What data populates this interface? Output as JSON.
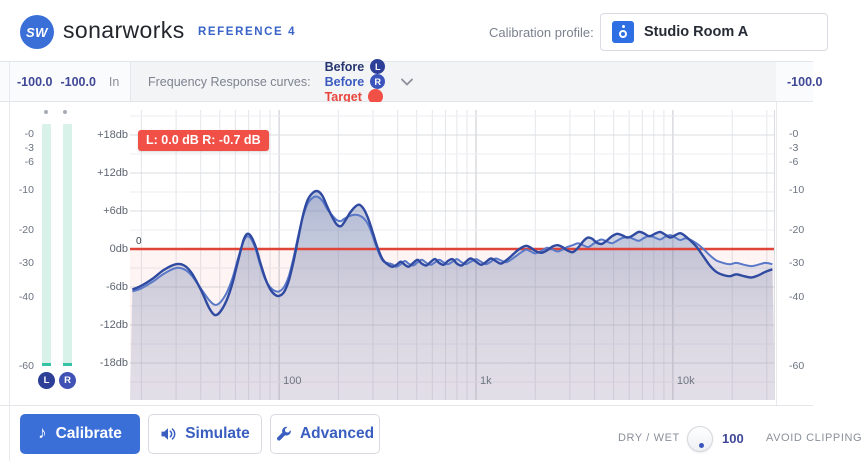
{
  "header": {
    "logo_text": "SW",
    "brand": "sonarworks",
    "product": "REFERENCE 4",
    "profile_label": "Calibration profile:",
    "profile_value": "Studio Room A"
  },
  "meters": {
    "left": {
      "peak_l": "-100.0",
      "peak_r": "-100.0",
      "mode": "In",
      "channels": [
        "L",
        "R"
      ],
      "ticks": [
        "-0",
        "-3",
        "-6",
        "-10",
        "-20",
        "-30",
        "-40",
        "-60"
      ]
    },
    "right": {
      "peak": "-100.0",
      "ticks": [
        "-0",
        "-3",
        "-6",
        "-10",
        "-20",
        "-30",
        "-40",
        "-60"
      ]
    }
  },
  "legend": {
    "title": "Frequency Response curves:",
    "items": [
      {
        "label": "Before",
        "badge": "L",
        "label_color": "#26356f",
        "badge_color": "#2e3f98"
      },
      {
        "label": "Before",
        "badge": "R",
        "label_color": "#3b5bc0",
        "badge_color": "#3c55bd"
      },
      {
        "label": "Target",
        "badge": "",
        "label_color": "#e8453c",
        "badge_color": "#f05045"
      }
    ]
  },
  "chart_data": {
    "type": "line",
    "x_scale": "log",
    "x_range_hz": [
      17.5,
      33000
    ],
    "y_range_db": [
      -24,
      22
    ],
    "grid": true,
    "tooltip": "L: 0.0 dB R: -0.7 dB",
    "target_db": 0,
    "target_label": "0",
    "x_ticks": [
      {
        "label": "100",
        "hz": 100
      },
      {
        "label": "1k",
        "hz": 1000
      },
      {
        "label": "10k",
        "hz": 10000
      }
    ],
    "y_ticks": [
      {
        "label": "+18db",
        "db": 18
      },
      {
        "label": "+12db",
        "db": 12
      },
      {
        "label": "+6db",
        "db": 6
      },
      {
        "label": "0db",
        "db": 0
      },
      {
        "label": "-6db",
        "db": -6
      },
      {
        "label": "-12db",
        "db": -12
      },
      {
        "label": "-18db",
        "db": -18
      }
    ],
    "series": [
      {
        "name": "Before L",
        "color": "#2f4aa0",
        "points": [
          [
            18,
            -6.4
          ],
          [
            20,
            -5.8
          ],
          [
            23,
            -4.6
          ],
          [
            26,
            -3.3
          ],
          [
            30,
            -2.4
          ],
          [
            33,
            -2.6
          ],
          [
            36,
            -3.8
          ],
          [
            40,
            -6.4
          ],
          [
            44,
            -9.2
          ],
          [
            47,
            -10.4
          ],
          [
            50,
            -10.0
          ],
          [
            54,
            -8.2
          ],
          [
            58,
            -5.4
          ],
          [
            62,
            -1.8
          ],
          [
            66,
            1.4
          ],
          [
            69,
            2.4
          ],
          [
            72,
            2.0
          ],
          [
            76,
            0.4
          ],
          [
            80,
            -2.0
          ],
          [
            85,
            -4.6
          ],
          [
            90,
            -6.3
          ],
          [
            95,
            -7.2
          ],
          [
            100,
            -7.4
          ],
          [
            106,
            -6.8
          ],
          [
            112,
            -5.0
          ],
          [
            118,
            -2.2
          ],
          [
            125,
            1.6
          ],
          [
            132,
            5.2
          ],
          [
            140,
            7.8
          ],
          [
            150,
            9.0
          ],
          [
            158,
            9.1
          ],
          [
            166,
            8.4
          ],
          [
            175,
            6.8
          ],
          [
            185,
            5.2
          ],
          [
            196,
            3.9
          ],
          [
            206,
            3.6
          ],
          [
            215,
            4.3
          ],
          [
            228,
            5.6
          ],
          [
            242,
            6.6
          ],
          [
            255,
            7.0
          ],
          [
            268,
            6.4
          ],
          [
            282,
            5.0
          ],
          [
            298,
            2.8
          ],
          [
            315,
            0.4
          ],
          [
            335,
            -1.6
          ],
          [
            355,
            -2.4
          ],
          [
            375,
            -2.8
          ],
          [
            395,
            -2.5
          ],
          [
            415,
            -2.0
          ],
          [
            435,
            -2.5
          ],
          [
            455,
            -2.8
          ],
          [
            480,
            -2.2
          ],
          [
            505,
            -1.7
          ],
          [
            530,
            -2.3
          ],
          [
            560,
            -2.6
          ],
          [
            590,
            -2.0
          ],
          [
            620,
            -1.6
          ],
          [
            650,
            -2.2
          ],
          [
            685,
            -2.5
          ],
          [
            720,
            -1.9
          ],
          [
            760,
            -1.6
          ],
          [
            800,
            -2.3
          ],
          [
            845,
            -2.6
          ],
          [
            890,
            -2.0
          ],
          [
            940,
            -1.5
          ],
          [
            1000,
            -2.0
          ],
          [
            1060,
            -2.5
          ],
          [
            1120,
            -2.1
          ],
          [
            1190,
            -1.5
          ],
          [
            1260,
            -1.9
          ],
          [
            1340,
            -2.3
          ],
          [
            1420,
            -1.8
          ],
          [
            1500,
            -1.2
          ],
          [
            1600,
            -0.4
          ],
          [
            1700,
            0.2
          ],
          [
            1800,
            0.5
          ],
          [
            1900,
            0.2
          ],
          [
            2000,
            -0.3
          ],
          [
            2150,
            -0.6
          ],
          [
            2300,
            -0.2
          ],
          [
            2450,
            0.4
          ],
          [
            2600,
            0.6
          ],
          [
            2750,
            0.3
          ],
          [
            2900,
            -0.2
          ],
          [
            3100,
            -0.5
          ],
          [
            3300,
            0.2
          ],
          [
            3500,
            1.2
          ],
          [
            3700,
            1.8
          ],
          [
            3900,
            1.6
          ],
          [
            4100,
            1.0
          ],
          [
            4350,
            0.8
          ],
          [
            4600,
            1.3
          ],
          [
            4900,
            2.0
          ],
          [
            5200,
            2.4
          ],
          [
            5500,
            2.2
          ],
          [
            5900,
            1.8
          ],
          [
            6300,
            2.2
          ],
          [
            6700,
            2.7
          ],
          [
            7100,
            2.5
          ],
          [
            7600,
            2.0
          ],
          [
            8100,
            2.4
          ],
          [
            8600,
            2.7
          ],
          [
            9100,
            2.3
          ],
          [
            9700,
            1.8
          ],
          [
            10300,
            2.2
          ],
          [
            10900,
            2.5
          ],
          [
            11600,
            2.0
          ],
          [
            12400,
            1.2
          ],
          [
            13300,
            0.2
          ],
          [
            14300,
            -1.2
          ],
          [
            15400,
            -2.6
          ],
          [
            16600,
            -3.6
          ],
          [
            18000,
            -4.1
          ],
          [
            19500,
            -4.3
          ],
          [
            21000,
            -4.0
          ],
          [
            23000,
            -4.3
          ],
          [
            25000,
            -4.5
          ],
          [
            27000,
            -4.2
          ],
          [
            29500,
            -3.6
          ],
          [
            32000,
            -3.2
          ]
        ]
      },
      {
        "name": "Before R",
        "color": "#5a78c8",
        "points": [
          [
            18,
            -6.7
          ],
          [
            20,
            -6.2
          ],
          [
            23,
            -5.1
          ],
          [
            26,
            -3.9
          ],
          [
            30,
            -3.0
          ],
          [
            33,
            -3.2
          ],
          [
            36,
            -4.2
          ],
          [
            40,
            -6.2
          ],
          [
            44,
            -8.0
          ],
          [
            47,
            -8.8
          ],
          [
            50,
            -8.5
          ],
          [
            54,
            -7.0
          ],
          [
            58,
            -4.6
          ],
          [
            62,
            -1.4
          ],
          [
            66,
            1.2
          ],
          [
            69,
            2.0
          ],
          [
            72,
            1.6
          ],
          [
            76,
            0.0
          ],
          [
            80,
            -2.4
          ],
          [
            85,
            -4.8
          ],
          [
            90,
            -6.0
          ],
          [
            95,
            -6.6
          ],
          [
            100,
            -6.7
          ],
          [
            106,
            -6.0
          ],
          [
            112,
            -4.3
          ],
          [
            118,
            -1.6
          ],
          [
            125,
            2.0
          ],
          [
            132,
            5.0
          ],
          [
            140,
            7.2
          ],
          [
            150,
            8.2
          ],
          [
            158,
            8.2
          ],
          [
            166,
            7.6
          ],
          [
            175,
            6.4
          ],
          [
            185,
            5.4
          ],
          [
            196,
            4.6
          ],
          [
            206,
            4.4
          ],
          [
            215,
            4.8
          ],
          [
            228,
            5.2
          ],
          [
            242,
            5.4
          ],
          [
            255,
            5.3
          ],
          [
            268,
            4.9
          ],
          [
            282,
            4.0
          ],
          [
            298,
            2.2
          ],
          [
            315,
            0.0
          ],
          [
            335,
            -1.8
          ],
          [
            355,
            -2.2
          ],
          [
            375,
            -2.4
          ],
          [
            395,
            -2.8
          ],
          [
            415,
            -2.4
          ],
          [
            435,
            -1.9
          ],
          [
            455,
            -2.3
          ],
          [
            480,
            -2.6
          ],
          [
            505,
            -2.1
          ],
          [
            530,
            -1.7
          ],
          [
            560,
            -2.2
          ],
          [
            590,
            -2.5
          ],
          [
            620,
            -2.1
          ],
          [
            650,
            -1.7
          ],
          [
            685,
            -2.1
          ],
          [
            720,
            -2.4
          ],
          [
            760,
            -2.0
          ],
          [
            800,
            -1.6
          ],
          [
            845,
            -2.1
          ],
          [
            890,
            -2.4
          ],
          [
            940,
            -2.0
          ],
          [
            1000,
            -1.6
          ],
          [
            1060,
            -2.0
          ],
          [
            1120,
            -2.4
          ],
          [
            1190,
            -2.0
          ],
          [
            1260,
            -1.5
          ],
          [
            1340,
            -1.8
          ],
          [
            1420,
            -2.1
          ],
          [
            1500,
            -1.7
          ],
          [
            1600,
            -1.1
          ],
          [
            1700,
            -0.5
          ],
          [
            1800,
            -0.1
          ],
          [
            1900,
            -0.4
          ],
          [
            2000,
            -0.7
          ],
          [
            2150,
            -0.3
          ],
          [
            2300,
            0.2
          ],
          [
            2450,
            -0.1
          ],
          [
            2600,
            -0.4
          ],
          [
            2750,
            -0.1
          ],
          [
            2900,
            0.3
          ],
          [
            3100,
            0.6
          ],
          [
            3300,
            0.9
          ],
          [
            3500,
            0.6
          ],
          [
            3700,
            0.3
          ],
          [
            3900,
            0.7
          ],
          [
            4100,
            1.2
          ],
          [
            4350,
            1.5
          ],
          [
            4600,
            1.2
          ],
          [
            4900,
            0.9
          ],
          [
            5200,
            1.3
          ],
          [
            5500,
            1.7
          ],
          [
            5900,
            1.9
          ],
          [
            6300,
            1.6
          ],
          [
            6700,
            1.3
          ],
          [
            7100,
            1.7
          ],
          [
            7600,
            2.1
          ],
          [
            8100,
            1.8
          ],
          [
            8600,
            1.5
          ],
          [
            9100,
            1.9
          ],
          [
            9700,
            2.2
          ],
          [
            10300,
            1.8
          ],
          [
            10900,
            1.4
          ],
          [
            11600,
            1.7
          ],
          [
            12400,
            1.4
          ],
          [
            13300,
            0.8
          ],
          [
            14300,
            0.0
          ],
          [
            15400,
            -1.0
          ],
          [
            16600,
            -1.8
          ],
          [
            18000,
            -2.2
          ],
          [
            19500,
            -2.4
          ],
          [
            21000,
            -2.2
          ],
          [
            23000,
            -2.5
          ],
          [
            25000,
            -2.7
          ],
          [
            27000,
            -2.5
          ],
          [
            29500,
            -2.2
          ],
          [
            32000,
            -2.4
          ]
        ]
      },
      {
        "name": "Target",
        "color": "#e04438",
        "points": [
          [
            17.5,
            0
          ],
          [
            33000,
            0
          ]
        ]
      }
    ]
  },
  "footer": {
    "calibrate": "Calibrate",
    "simulate": "Simulate",
    "advanced": "Advanced",
    "dry_wet_label": "DRY / WET",
    "dry_wet_value": "100",
    "avoid_clip": "AVOID CLIPPING"
  },
  "colors": {
    "accent_blue": "#3b6fd8",
    "target_red": "#f05045",
    "meter_mint": "#d9f2e9",
    "meter_teal": "#36c2a5"
  }
}
